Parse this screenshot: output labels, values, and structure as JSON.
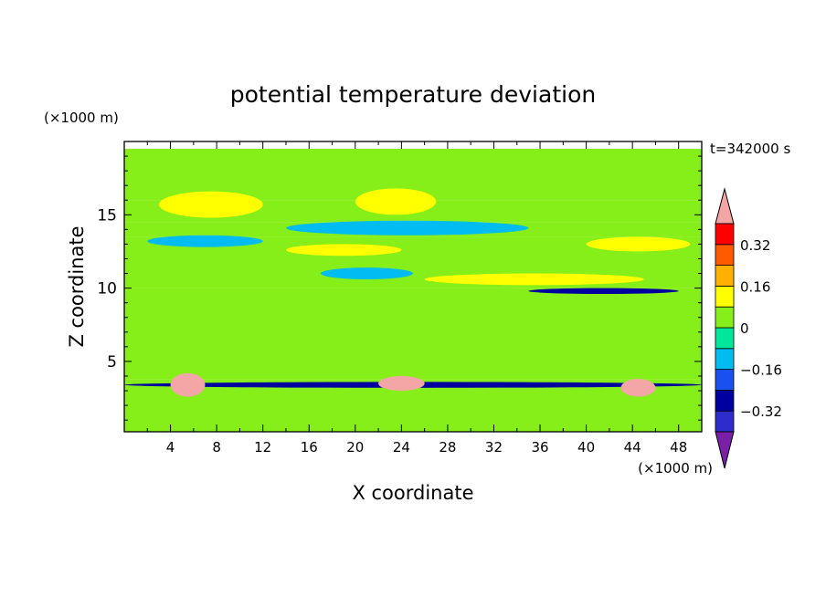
{
  "chart_data": {
    "type": "heatmap",
    "title": "potential temperature deviation",
    "time_label": "t=342000 s",
    "xlabel": "X coordinate",
    "ylabel": "Z coordinate",
    "x_unit": "(×1000 m)",
    "y_unit": "(×1000 m)",
    "xlim": [
      0,
      50
    ],
    "ylim": [
      0.2,
      20
    ],
    "x_ticks": [
      4,
      8,
      12,
      16,
      20,
      24,
      28,
      32,
      36,
      40,
      44,
      48
    ],
    "x_tick_labels": [
      "4",
      "8",
      "12",
      "16",
      "20",
      "24",
      "28",
      "32",
      "36",
      "40",
      "44",
      "48"
    ],
    "y_ticks": [
      5,
      10,
      15
    ],
    "y_tick_labels": [
      "5",
      "10",
      "15"
    ],
    "colorbar": {
      "levels": [
        -0.4,
        -0.32,
        -0.24,
        -0.16,
        -0.08,
        0,
        0.08,
        0.16,
        0.24,
        0.32,
        0.4
      ],
      "colors": [
        "#2f2ccd",
        "#0000a0",
        "#1a50f0",
        "#00bcf0",
        "#00e69a",
        "#86ee18",
        "#ffff00",
        "#ffb000",
        "#ff5a00",
        "#ff0000"
      ],
      "under_color": "#7a1fa8",
      "over_color": "#f4a6a6",
      "tick_values": [
        -0.32,
        -0.16,
        0,
        0.16,
        0.32
      ],
      "tick_labels": [
        "−0.32",
        "−0.16",
        "0",
        "0.16",
        "0.32"
      ]
    },
    "features": [
      {
        "kind": "band",
        "z": [
          16.0,
          19.5
        ],
        "value": 0.05
      },
      {
        "kind": "band",
        "z": [
          14.5,
          16.0
        ],
        "value": 0.04
      },
      {
        "kind": "band",
        "z": [
          13.5,
          14.5
        ],
        "value": 0.02
      },
      {
        "kind": "band",
        "z": [
          11.5,
          13.5
        ],
        "value": 0.05
      },
      {
        "kind": "band",
        "z": [
          10.0,
          11.5
        ],
        "value": 0.01
      },
      {
        "kind": "band",
        "z": [
          3.8,
          10.0
        ],
        "value": 0.05
      },
      {
        "kind": "band",
        "z": [
          0.2,
          3.8
        ],
        "value": 0.03
      },
      {
        "kind": "region",
        "x": [
          3,
          12
        ],
        "z": [
          14.8,
          16.6
        ],
        "value": 0.12
      },
      {
        "kind": "region",
        "x": [
          20,
          27
        ],
        "z": [
          15.0,
          16.8
        ],
        "value": 0.12
      },
      {
        "kind": "region",
        "x": [
          40,
          49
        ],
        "z": [
          12.5,
          13.5
        ],
        "value": 0.12
      },
      {
        "kind": "region",
        "x": [
          26,
          45
        ],
        "z": [
          10.2,
          11.0
        ],
        "value": 0.12
      },
      {
        "kind": "region",
        "x": [
          14,
          24
        ],
        "z": [
          12.2,
          13.0
        ],
        "value": 0.12
      },
      {
        "kind": "region",
        "x": [
          2,
          12
        ],
        "z": [
          12.8,
          13.6
        ],
        "value": -0.12
      },
      {
        "kind": "region",
        "x": [
          14,
          35
        ],
        "z": [
          13.6,
          14.6
        ],
        "value": -0.12
      },
      {
        "kind": "region",
        "x": [
          17,
          25
        ],
        "z": [
          10.6,
          11.4
        ],
        "value": -0.12
      },
      {
        "kind": "region",
        "x": [
          35,
          48
        ],
        "z": [
          9.6,
          10.0
        ],
        "value": -0.28
      },
      {
        "kind": "region",
        "x": [
          0,
          50
        ],
        "z": [
          3.2,
          3.6
        ],
        "value": -0.3
      },
      {
        "kind": "region",
        "x": [
          4,
          7
        ],
        "z": [
          2.6,
          4.2
        ],
        "value": 0.42
      },
      {
        "kind": "region",
        "x": [
          43,
          46
        ],
        "z": [
          2.6,
          3.8
        ],
        "value": 0.42
      },
      {
        "kind": "region",
        "x": [
          22,
          26
        ],
        "z": [
          3.0,
          4.0
        ],
        "value": 0.42
      }
    ]
  }
}
